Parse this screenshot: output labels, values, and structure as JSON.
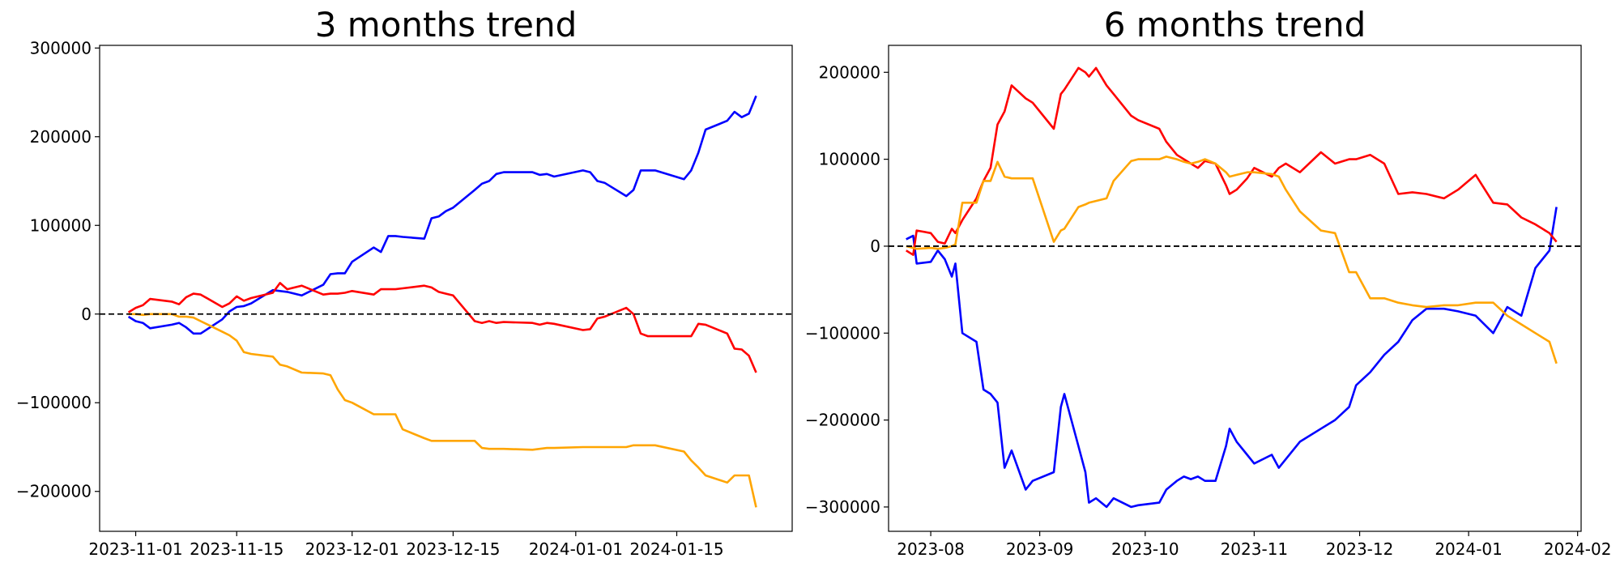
{
  "chart_data": [
    {
      "type": "line",
      "title": "3 months trend",
      "xlabel": "",
      "ylabel": "",
      "x_type": "date",
      "xlim": [
        "2023-10-27",
        "2024-01-31"
      ],
      "ylim": [
        -245000,
        303000
      ],
      "x_ticks": [
        "2023-11-01",
        "2023-11-15",
        "2023-12-01",
        "2023-12-15",
        "2024-01-01",
        "2024-01-15"
      ],
      "y_ticks": [
        -200000,
        -100000,
        0,
        100000,
        200000,
        300000
      ],
      "y_tick_labels": [
        "−200000",
        "−100000",
        "0",
        "100000",
        "200000",
        "300000"
      ],
      "reference_line": 0,
      "grid": false,
      "series": [
        {
          "color": "#0000ff",
          "x": [
            "2023-10-31",
            "2023-11-01",
            "2023-11-02",
            "2023-11-03",
            "2023-11-06",
            "2023-11-07",
            "2023-11-08",
            "2023-11-09",
            "2023-11-10",
            "2023-11-13",
            "2023-11-14",
            "2023-11-15",
            "2023-11-16",
            "2023-11-17",
            "2023-11-20",
            "2023-11-21",
            "2023-11-22",
            "2023-11-24",
            "2023-11-27",
            "2023-11-28",
            "2023-11-29",
            "2023-11-30",
            "2023-12-01",
            "2023-12-04",
            "2023-12-05",
            "2023-12-06",
            "2023-12-07",
            "2023-12-08",
            "2023-12-11",
            "2023-12-12",
            "2023-12-13",
            "2023-12-14",
            "2023-12-15",
            "2023-12-18",
            "2023-12-19",
            "2023-12-20",
            "2023-12-21",
            "2023-12-22",
            "2023-12-26",
            "2023-12-27",
            "2023-12-28",
            "2023-12-29",
            "2024-01-02",
            "2024-01-03",
            "2024-01-04",
            "2024-01-05",
            "2024-01-08",
            "2024-01-09",
            "2024-01-10",
            "2024-01-11",
            "2024-01-12",
            "2024-01-16",
            "2024-01-17",
            "2024-01-18",
            "2024-01-19",
            "2024-01-22",
            "2024-01-23",
            "2024-01-24",
            "2024-01-25",
            "2024-01-26"
          ],
          "values": [
            -3000,
            -8000,
            -10000,
            -16000,
            -12000,
            -10000,
            -15000,
            -22000,
            -22000,
            -6000,
            3000,
            8000,
            9000,
            12000,
            27000,
            26000,
            25000,
            21000,
            33000,
            45000,
            46000,
            46000,
            59000,
            75000,
            70000,
            88000,
            88000,
            87000,
            85000,
            108000,
            110000,
            116000,
            120000,
            140000,
            147000,
            150000,
            158000,
            160000,
            160000,
            157000,
            158000,
            155000,
            162000,
            160000,
            150000,
            148000,
            133000,
            140000,
            162000,
            162000,
            162000,
            152000,
            162000,
            182000,
            208000,
            218000,
            228000,
            222000,
            226000,
            246000
          ]
        },
        {
          "color": "#ff0000",
          "x": [
            "2023-10-31",
            "2023-11-01",
            "2023-11-02",
            "2023-11-03",
            "2023-11-06",
            "2023-11-07",
            "2023-11-08",
            "2023-11-09",
            "2023-11-10",
            "2023-11-13",
            "2023-11-14",
            "2023-11-15",
            "2023-11-16",
            "2023-11-17",
            "2023-11-20",
            "2023-11-21",
            "2023-11-22",
            "2023-11-24",
            "2023-11-27",
            "2023-11-28",
            "2023-11-29",
            "2023-11-30",
            "2023-12-01",
            "2023-12-04",
            "2023-12-05",
            "2023-12-06",
            "2023-12-07",
            "2023-12-08",
            "2023-12-11",
            "2023-12-12",
            "2023-12-13",
            "2023-12-14",
            "2023-12-15",
            "2023-12-18",
            "2023-12-19",
            "2023-12-20",
            "2023-12-21",
            "2023-12-22",
            "2023-12-26",
            "2023-12-27",
            "2023-12-28",
            "2023-12-29",
            "2024-01-02",
            "2024-01-03",
            "2024-01-04",
            "2024-01-05",
            "2024-01-08",
            "2024-01-09",
            "2024-01-10",
            "2024-01-11",
            "2024-01-12",
            "2024-01-16",
            "2024-01-17",
            "2024-01-18",
            "2024-01-19",
            "2024-01-22",
            "2024-01-23",
            "2024-01-24",
            "2024-01-25",
            "2024-01-26"
          ],
          "values": [
            2000,
            7000,
            10000,
            17000,
            14000,
            11000,
            19000,
            23000,
            22000,
            8000,
            12000,
            20000,
            15000,
            18000,
            24000,
            35000,
            28000,
            32000,
            22000,
            23000,
            23000,
            24000,
            26000,
            22000,
            28000,
            28000,
            28000,
            29000,
            32000,
            30000,
            25000,
            23000,
            21000,
            -8000,
            -10000,
            -8000,
            -10000,
            -9000,
            -10000,
            -12000,
            -10000,
            -11000,
            -18000,
            -17000,
            -5000,
            -3000,
            7000,
            0,
            -22000,
            -25000,
            -25000,
            -25000,
            -25000,
            -11000,
            -12000,
            -22000,
            -39000,
            -40000,
            -47000,
            -66000
          ]
        },
        {
          "color": "#ffa500",
          "x": [
            "2023-10-31",
            "2023-11-01",
            "2023-11-02",
            "2023-11-03",
            "2023-11-06",
            "2023-11-07",
            "2023-11-08",
            "2023-11-09",
            "2023-11-10",
            "2023-11-13",
            "2023-11-14",
            "2023-11-15",
            "2023-11-16",
            "2023-11-17",
            "2023-11-20",
            "2023-11-21",
            "2023-11-22",
            "2023-11-24",
            "2023-11-27",
            "2023-11-28",
            "2023-11-29",
            "2023-11-30",
            "2023-12-01",
            "2023-12-04",
            "2023-12-05",
            "2023-12-06",
            "2023-12-07",
            "2023-12-08",
            "2023-12-11",
            "2023-12-12",
            "2023-12-13",
            "2023-12-14",
            "2023-12-15",
            "2023-12-18",
            "2023-12-19",
            "2023-12-20",
            "2023-12-21",
            "2023-12-22",
            "2023-12-26",
            "2023-12-27",
            "2023-12-28",
            "2023-12-29",
            "2024-01-02",
            "2024-01-03",
            "2024-01-04",
            "2024-01-05",
            "2024-01-08",
            "2024-01-09",
            "2024-01-10",
            "2024-01-11",
            "2024-01-12",
            "2024-01-16",
            "2024-01-17",
            "2024-01-18",
            "2024-01-19",
            "2024-01-22",
            "2024-01-23",
            "2024-01-24",
            "2024-01-25",
            "2024-01-26"
          ],
          "values": [
            0,
            0,
            -1000,
            0,
            0,
            -3000,
            -3000,
            -4000,
            -8000,
            -20000,
            -24000,
            -30000,
            -43000,
            -45000,
            -48000,
            -57000,
            -59000,
            -66000,
            -67000,
            -69000,
            -85000,
            -97000,
            -100000,
            -113000,
            -113000,
            -113000,
            -113000,
            -130000,
            -140000,
            -143000,
            -143000,
            -143000,
            -143000,
            -143000,
            -151000,
            -152000,
            -152000,
            -152000,
            -153000,
            -152000,
            -151000,
            -151000,
            -150000,
            -150000,
            -150000,
            -150000,
            -150000,
            -148000,
            -148000,
            -148000,
            -148000,
            -155000,
            -165000,
            -173000,
            -182000,
            -190000,
            -182000,
            -182000,
            -182000,
            -218000
          ]
        }
      ]
    },
    {
      "type": "line",
      "title": "6 months trend",
      "xlabel": "",
      "ylabel": "",
      "x_type": "date",
      "xlim": [
        "2023-07-20",
        "2024-02-02"
      ],
      "ylim": [
        -328000,
        231000
      ],
      "x_ticks": [
        "2023-08-01",
        "2023-09-01",
        "2023-10-01",
        "2023-11-01",
        "2023-12-01",
        "2024-01-01",
        "2024-02-01"
      ],
      "x_tick_labels": [
        "2023-08",
        "2023-09",
        "2023-10",
        "2023-11",
        "2023-12",
        "2024-01",
        "2024-02"
      ],
      "y_ticks": [
        -300000,
        -200000,
        -100000,
        0,
        100000,
        200000
      ],
      "y_tick_labels": [
        "−300000",
        "−200000",
        "−100000",
        "0",
        "100000",
        "200000"
      ],
      "reference_line": 0,
      "grid": false,
      "series": [
        {
          "color": "#0000ff",
          "x": [
            "2023-07-25",
            "2023-07-27",
            "2023-07-28",
            "2023-08-01",
            "2023-08-03",
            "2023-08-05",
            "2023-08-07",
            "2023-08-08",
            "2023-08-10",
            "2023-08-14",
            "2023-08-16",
            "2023-08-18",
            "2023-08-20",
            "2023-08-22",
            "2023-08-24",
            "2023-08-28",
            "2023-08-30",
            "2023-09-05",
            "2023-09-07",
            "2023-09-08",
            "2023-09-12",
            "2023-09-14",
            "2023-09-15",
            "2023-09-17",
            "2023-09-20",
            "2023-09-22",
            "2023-09-27",
            "2023-09-29",
            "2023-10-05",
            "2023-10-07",
            "2023-10-10",
            "2023-10-12",
            "2023-10-14",
            "2023-10-16",
            "2023-10-18",
            "2023-10-21",
            "2023-10-24",
            "2023-10-25",
            "2023-10-27",
            "2023-10-30",
            "2023-11-01",
            "2023-11-06",
            "2023-11-08",
            "2023-11-10",
            "2023-11-14",
            "2023-11-20",
            "2023-11-24",
            "2023-11-28",
            "2023-11-30",
            "2023-12-04",
            "2023-12-08",
            "2023-12-12",
            "2023-12-16",
            "2023-12-20",
            "2023-12-25",
            "2023-12-29",
            "2024-01-03",
            "2024-01-08",
            "2024-01-12",
            "2024-01-16",
            "2024-01-20",
            "2024-01-24",
            "2024-01-26"
          ],
          "values": [
            8000,
            12000,
            -20000,
            -18000,
            -5000,
            -15000,
            -35000,
            -20000,
            -100000,
            -110000,
            -165000,
            -170000,
            -180000,
            -255000,
            -235000,
            -280000,
            -270000,
            -260000,
            -185000,
            -170000,
            -230000,
            -260000,
            -295000,
            -290000,
            -300000,
            -290000,
            -300000,
            -298000,
            -295000,
            -280000,
            -270000,
            -265000,
            -268000,
            -265000,
            -270000,
            -270000,
            -230000,
            -210000,
            -225000,
            -240000,
            -250000,
            -240000,
            -255000,
            -245000,
            -225000,
            -210000,
            -200000,
            -185000,
            -160000,
            -145000,
            -125000,
            -110000,
            -85000,
            -72000,
            -72000,
            -75000,
            -80000,
            -100000,
            -70000,
            -80000,
            -25000,
            -5000,
            45000
          ]
        },
        {
          "color": "#ff0000",
          "x": [
            "2023-07-25",
            "2023-07-27",
            "2023-07-28",
            "2023-08-01",
            "2023-08-03",
            "2023-08-05",
            "2023-08-07",
            "2023-08-08",
            "2023-08-10",
            "2023-08-14",
            "2023-08-16",
            "2023-08-18",
            "2023-08-20",
            "2023-08-22",
            "2023-08-24",
            "2023-08-28",
            "2023-08-30",
            "2023-09-05",
            "2023-09-07",
            "2023-09-08",
            "2023-09-12",
            "2023-09-14",
            "2023-09-15",
            "2023-09-17",
            "2023-09-20",
            "2023-09-22",
            "2023-09-27",
            "2023-09-29",
            "2023-10-05",
            "2023-10-07",
            "2023-10-10",
            "2023-10-12",
            "2023-10-14",
            "2023-10-16",
            "2023-10-18",
            "2023-10-21",
            "2023-10-24",
            "2023-10-25",
            "2023-10-27",
            "2023-10-30",
            "2023-11-01",
            "2023-11-06",
            "2023-11-08",
            "2023-11-10",
            "2023-11-14",
            "2023-11-20",
            "2023-11-24",
            "2023-11-28",
            "2023-11-30",
            "2023-12-04",
            "2023-12-08",
            "2023-12-12",
            "2023-12-16",
            "2023-12-20",
            "2023-12-25",
            "2023-12-29",
            "2024-01-03",
            "2024-01-08",
            "2024-01-12",
            "2024-01-16",
            "2024-01-20",
            "2024-01-24",
            "2024-01-26"
          ],
          "values": [
            -5000,
            -10000,
            18000,
            15000,
            5000,
            3000,
            20000,
            15000,
            30000,
            55000,
            75000,
            90000,
            140000,
            155000,
            185000,
            170000,
            165000,
            135000,
            175000,
            180000,
            205000,
            200000,
            195000,
            205000,
            185000,
            175000,
            150000,
            145000,
            135000,
            120000,
            105000,
            100000,
            95000,
            90000,
            98000,
            95000,
            70000,
            60000,
            65000,
            78000,
            90000,
            80000,
            90000,
            95000,
            85000,
            108000,
            95000,
            100000,
            100000,
            105000,
            95000,
            60000,
            62000,
            60000,
            55000,
            65000,
            82000,
            50000,
            48000,
            33000,
            25000,
            15000,
            5000
          ]
        },
        {
          "color": "#ffa500",
          "x": [
            "2023-07-25",
            "2023-07-27",
            "2023-07-28",
            "2023-08-01",
            "2023-08-03",
            "2023-08-05",
            "2023-08-07",
            "2023-08-08",
            "2023-08-10",
            "2023-08-14",
            "2023-08-16",
            "2023-08-18",
            "2023-08-20",
            "2023-08-22",
            "2023-08-24",
            "2023-08-28",
            "2023-08-30",
            "2023-09-05",
            "2023-09-07",
            "2023-09-08",
            "2023-09-12",
            "2023-09-14",
            "2023-09-15",
            "2023-09-17",
            "2023-09-20",
            "2023-09-22",
            "2023-09-27",
            "2023-09-29",
            "2023-10-05",
            "2023-10-07",
            "2023-10-10",
            "2023-10-12",
            "2023-10-14",
            "2023-10-16",
            "2023-10-18",
            "2023-10-21",
            "2023-10-24",
            "2023-10-25",
            "2023-10-27",
            "2023-10-30",
            "2023-11-01",
            "2023-11-06",
            "2023-11-08",
            "2023-11-10",
            "2023-11-14",
            "2023-11-20",
            "2023-11-24",
            "2023-11-28",
            "2023-11-30",
            "2023-12-04",
            "2023-12-08",
            "2023-12-12",
            "2023-12-16",
            "2023-12-20",
            "2023-12-25",
            "2023-12-29",
            "2024-01-03",
            "2024-01-08",
            "2024-01-12",
            "2024-01-16",
            "2024-01-20",
            "2024-01-24",
            "2024-01-26"
          ],
          "values": [
            0,
            -2000,
            -3000,
            -2000,
            -3000,
            -2000,
            0,
            2000,
            50000,
            50000,
            75000,
            75000,
            97000,
            80000,
            78000,
            78000,
            78000,
            5000,
            18000,
            20000,
            45000,
            48000,
            50000,
            52000,
            55000,
            75000,
            98000,
            100000,
            100000,
            103000,
            100000,
            97000,
            95000,
            97000,
            100000,
            95000,
            85000,
            80000,
            82000,
            85000,
            85000,
            83000,
            80000,
            65000,
            40000,
            18000,
            15000,
            -30000,
            -30000,
            -60000,
            -60000,
            -65000,
            -68000,
            -70000,
            -68000,
            -68000,
            -65000,
            -65000,
            -80000,
            -90000,
            -100000,
            -110000,
            -135000
          ]
        }
      ]
    }
  ]
}
